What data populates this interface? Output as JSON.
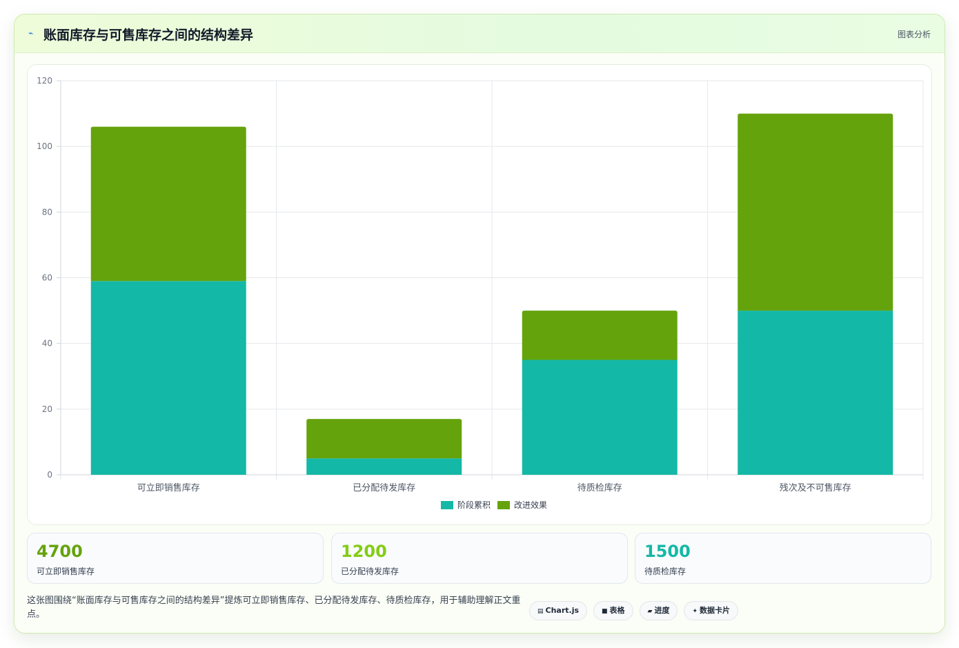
{
  "header": {
    "logo_icon": "chart-trend-icon",
    "title": "账面库存与可售库存之间的结构差异",
    "tag": "图表分析"
  },
  "chart_data": {
    "type": "bar",
    "stacked": true,
    "categories": [
      "可立即销售库存",
      "已分配待发库存",
      "待质检库存",
      "残次及不可售库存"
    ],
    "series": [
      {
        "name": "阶段累积",
        "values": [
          59,
          5,
          35,
          50
        ],
        "color": "#14b8a6"
      },
      {
        "name": "改进效果",
        "values": [
          47,
          12,
          15,
          60
        ],
        "color": "#65a30d"
      }
    ],
    "ylim": [
      0,
      120
    ],
    "yticks": [
      0,
      20,
      40,
      60,
      80,
      100,
      120
    ],
    "grid": true,
    "legend": "bottom"
  },
  "stats": [
    {
      "value": "4700",
      "label": "可立即销售库存",
      "color": "#65a30d"
    },
    {
      "value": "1200",
      "label": "已分配待发库存",
      "color": "#84cc16"
    },
    {
      "value": "1500",
      "label": "待质检库存",
      "color": "#14b8a6"
    }
  ],
  "description": "这张图围绕“账面库存与可售库存之间的结构差异”提炼可立即销售库存、已分配待发库存、待质检库存，用于辅助理解正文重点。",
  "chips": [
    {
      "icon": "▤",
      "icon_name": "chart-icon",
      "label": "Chart.js"
    },
    {
      "icon": "■",
      "icon_name": "table-icon",
      "label": "表格"
    },
    {
      "icon": "▰",
      "icon_name": "progress-icon",
      "label": "进度"
    },
    {
      "icon": "✦",
      "icon_name": "card-icon",
      "label": "数据卡片"
    }
  ]
}
